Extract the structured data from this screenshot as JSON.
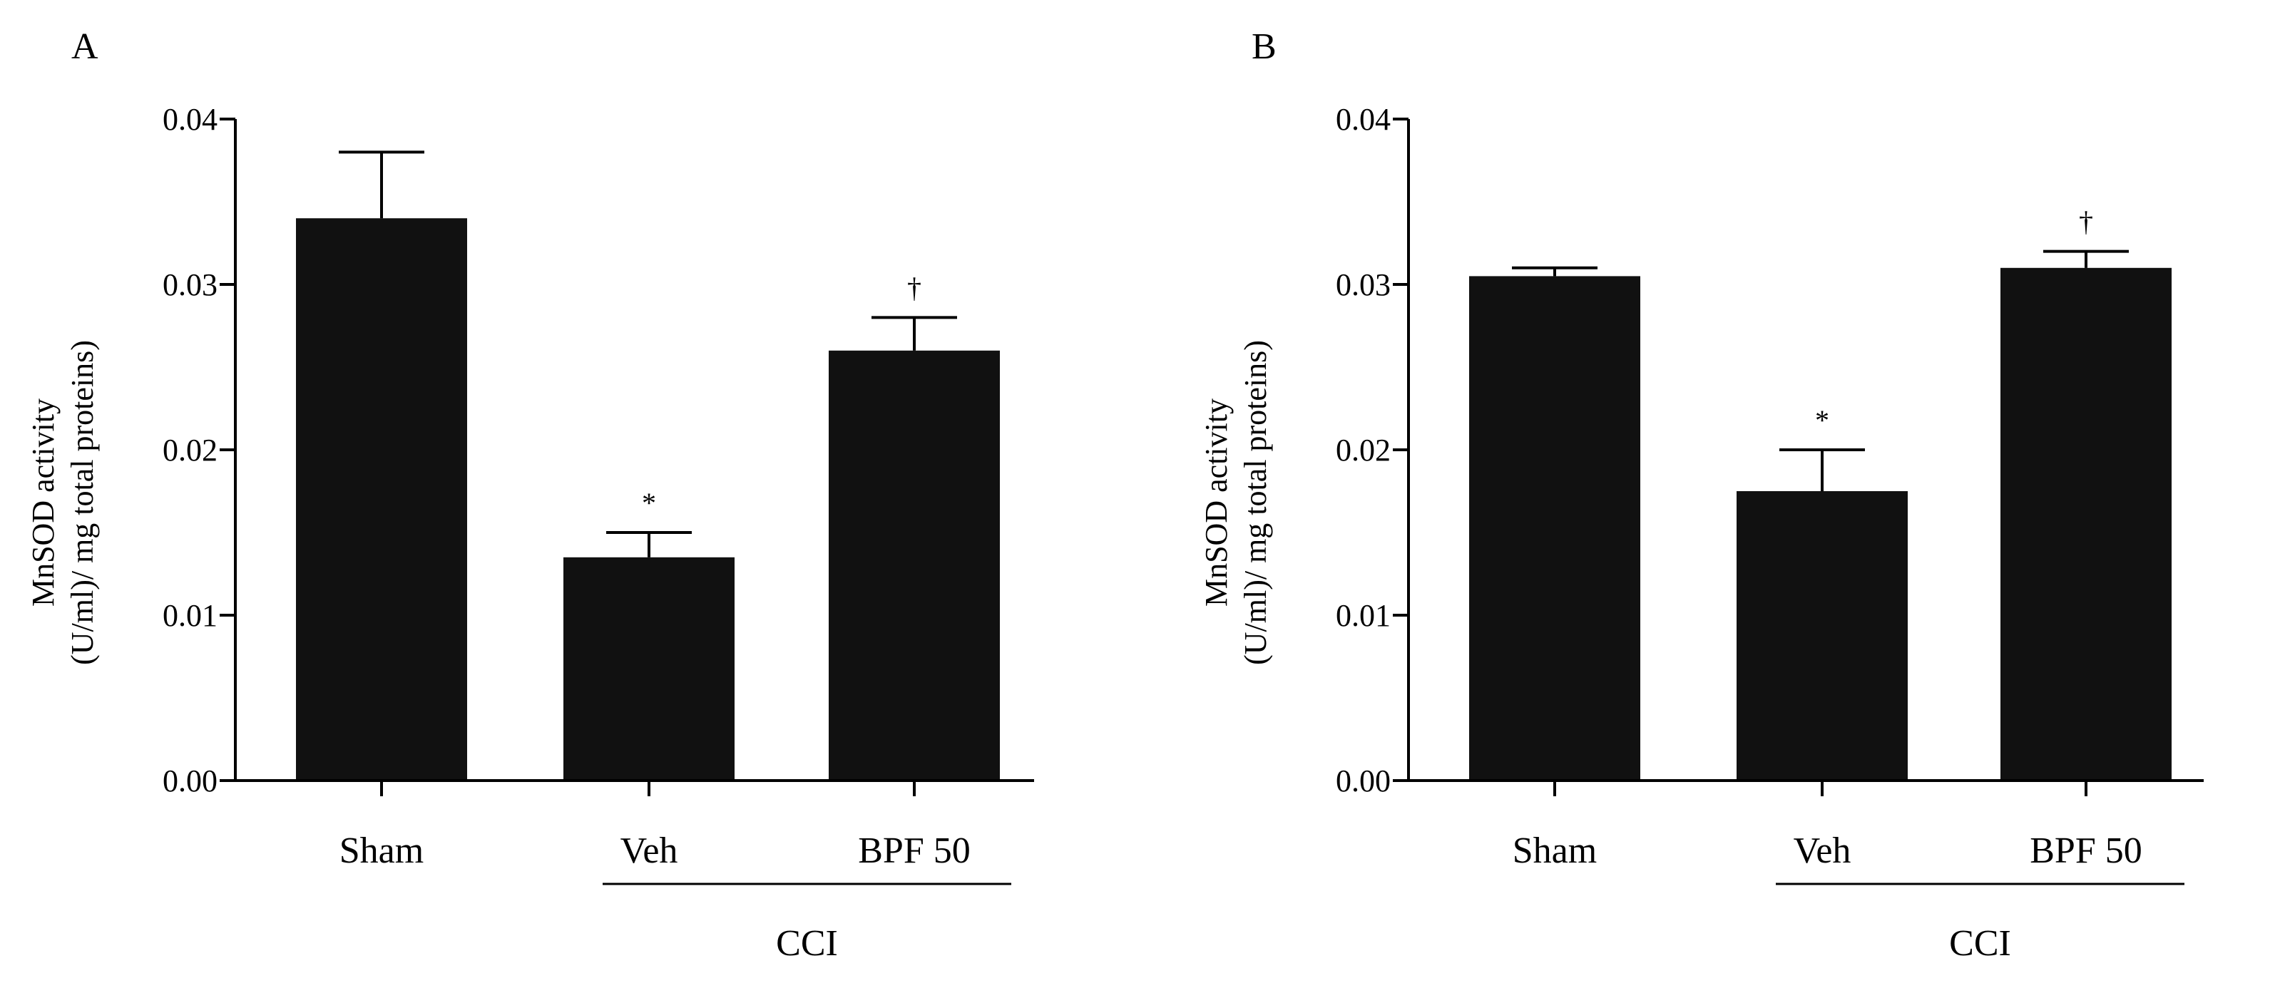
{
  "figure": {
    "panels": [
      {
        "label": "A"
      },
      {
        "label": "B"
      }
    ]
  },
  "chart_data": [
    {
      "type": "bar",
      "panel": "A",
      "title": "",
      "xlabel": "",
      "ylabel_line1": "MnSOD activity",
      "ylabel_line2": "(U/ml)/ mg total proteins)",
      "ylim": [
        0,
        0.04
      ],
      "yticks": [
        "0.00",
        "0.01",
        "0.02",
        "0.03",
        "0.04"
      ],
      "categories": [
        "Sham",
        "Veh",
        "BPF 50"
      ],
      "values": [
        0.034,
        0.0135,
        0.026
      ],
      "errors": [
        0.004,
        0.0015,
        0.002
      ],
      "annotations": [
        "",
        "*",
        "†"
      ],
      "group_label": "CCI",
      "bar_color": "#111111"
    },
    {
      "type": "bar",
      "panel": "B",
      "title": "",
      "xlabel": "",
      "ylabel_line1": "MnSOD activity",
      "ylabel_line2": "(U/ml)/ mg total proteins)",
      "ylim": [
        0,
        0.04
      ],
      "yticks": [
        "0.00",
        "0.01",
        "0.02",
        "0.03",
        "0.04"
      ],
      "categories": [
        "Sham",
        "Veh",
        "BPF 50"
      ],
      "values": [
        0.0305,
        0.0175,
        0.031
      ],
      "errors": [
        0.0005,
        0.0025,
        0.001
      ],
      "annotations": [
        "",
        "*",
        "†"
      ],
      "group_label": "CCI",
      "bar_color": "#111111"
    }
  ]
}
